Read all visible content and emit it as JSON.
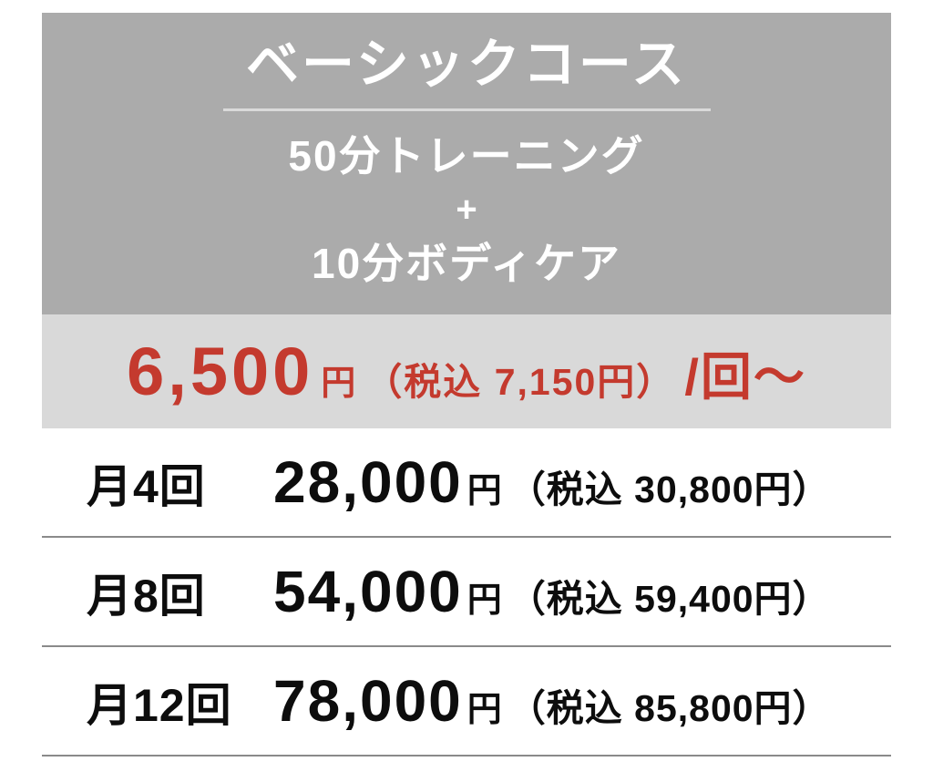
{
  "colors": {
    "header_bg": "#ababab",
    "banner_bg": "#d9d9d9",
    "accent_red": "#c43a2e",
    "text": "#0d0d0d",
    "divider": "#8a8a8a",
    "header_text": "#ffffff"
  },
  "card": {
    "title": "ベーシックコース",
    "features": {
      "line1": "50分トレーニング",
      "plus": "+",
      "line2": "10分ボディケア"
    },
    "banner": {
      "amount": "6,500",
      "amount_unit": "円",
      "tax_note": "（税込 7,150円）",
      "per_suffix": "/回〜"
    },
    "plans": [
      {
        "label": "月4回",
        "price": "28,000",
        "unit": "円",
        "tax_note": "（税込 30,800円）"
      },
      {
        "label": "月8回",
        "price": "54,000",
        "unit": "円",
        "tax_note": "（税込 59,400円）"
      },
      {
        "label": "月12回",
        "price": "78,000",
        "unit": "円",
        "tax_note": "（税込 85,800円）"
      }
    ]
  }
}
